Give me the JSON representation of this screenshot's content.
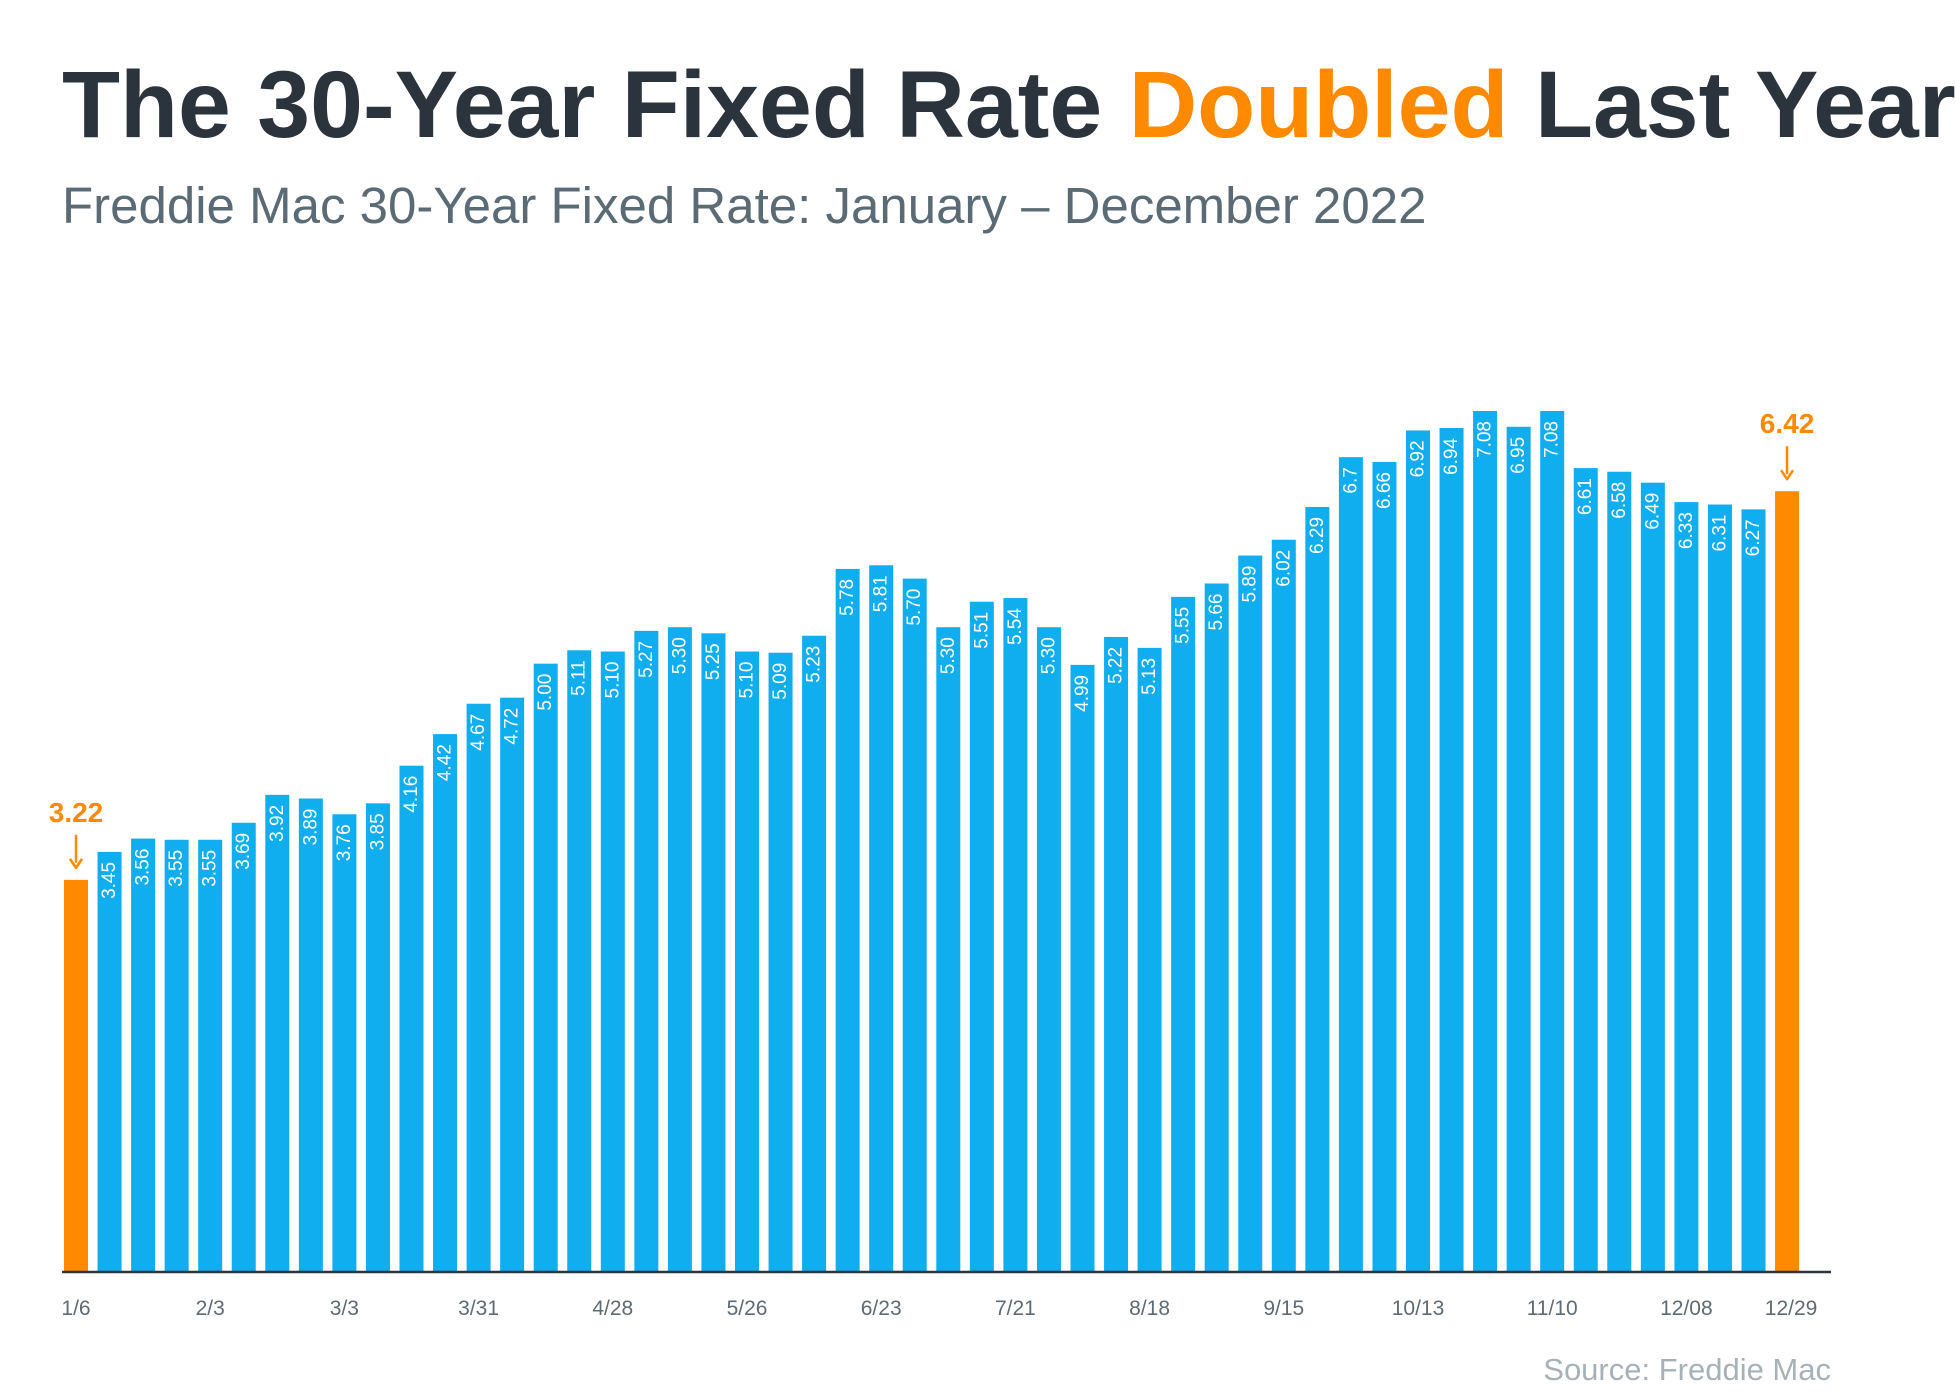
{
  "header": {
    "title_prefix": "The 30-Year Fixed Rate ",
    "title_highlight": "Doubled",
    "title_suffix": " Last Year",
    "subtitle": "Freddie Mac 30-Year Fixed Rate: January – December 2022"
  },
  "footer": {
    "source": "Source: Freddie Mac"
  },
  "colors": {
    "bar": "#10aeef",
    "highlight": "#ff8a00",
    "title": "#2b333c",
    "subtitle": "#5b6b76",
    "axis_label": "#5e6b75",
    "source": "#a7b1b8",
    "axis_line": "#2b333c"
  },
  "chart_data": {
    "type": "bar",
    "title": "The 30-Year Fixed Rate Doubled Last Year",
    "subtitle": "Freddie Mac 30-Year Fixed Rate: January – December 2022",
    "xlabel": "",
    "ylabel": "",
    "ylim": [
      0,
      7.08
    ],
    "grid": false,
    "legend": "none",
    "categories": [
      "1/6",
      "",
      "",
      "",
      "2/3",
      "",
      "",
      "",
      "3/3",
      "",
      "",
      "",
      "3/31",
      "",
      "",
      "",
      "4/28",
      "",
      "",
      "",
      "5/26",
      "",
      "",
      "",
      "6/23",
      "",
      "",
      "",
      "7/21",
      "",
      "",
      "",
      "8/18",
      "",
      "",
      "",
      "9/15",
      "",
      "",
      "",
      "10/13",
      "",
      "",
      "",
      "11/10",
      "",
      "",
      "",
      "12/08",
      "",
      "",
      "12/29"
    ],
    "values": [
      3.22,
      3.45,
      3.56,
      3.55,
      3.55,
      3.69,
      3.92,
      3.89,
      3.76,
      3.85,
      4.16,
      4.42,
      4.67,
      4.72,
      5.0,
      5.11,
      5.1,
      5.27,
      5.3,
      5.25,
      5.1,
      5.09,
      5.23,
      5.78,
      5.81,
      5.7,
      5.3,
      5.51,
      5.54,
      5.3,
      4.99,
      5.22,
      5.13,
      5.55,
      5.66,
      5.89,
      6.02,
      6.29,
      6.7,
      6.66,
      6.92,
      6.94,
      7.08,
      6.95,
      7.08,
      6.61,
      6.58,
      6.49,
      6.33,
      6.31,
      6.27,
      6.42
    ],
    "data_labels": [
      "3.22",
      "3.45",
      "3.56",
      "3.55",
      "3.55",
      "3.69",
      "3.92",
      "3.89",
      "3.76",
      "3.85",
      "4.16",
      "4.42",
      "4.67",
      "4.72",
      "5.00",
      "5.11",
      "5.10",
      "5.27",
      "5.30",
      "5.25",
      "5.10",
      "5.09",
      "5.23",
      "5.78",
      "5.81",
      "5.70",
      "5.30",
      "5.51",
      "5.54",
      "5.30",
      "4.99",
      "5.22",
      "5.13",
      "5.55",
      "5.66",
      "5.89",
      "6.02",
      "6.29",
      "6.7",
      "6.66",
      "6.92",
      "6.94",
      "7.08",
      "6.95",
      "7.08",
      "6.61",
      "6.58",
      "6.49",
      "6.33",
      "6.31",
      "6.27",
      "6.42"
    ],
    "highlighted_indices": [
      0,
      51
    ]
  }
}
